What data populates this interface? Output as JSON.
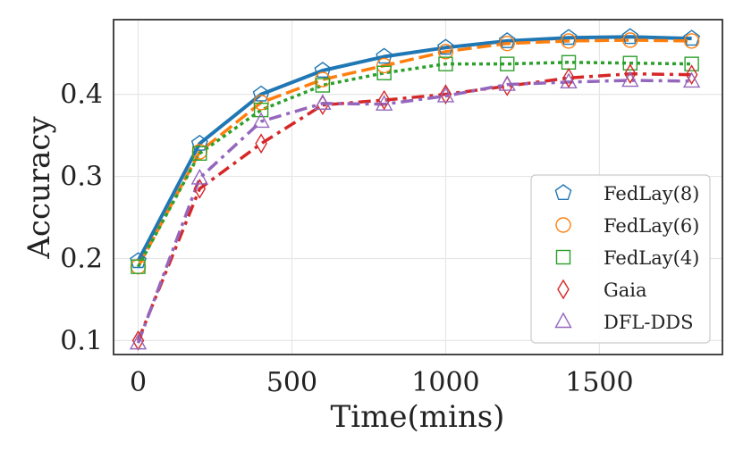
{
  "chart_data": {
    "type": "line",
    "title": "",
    "xlabel": "Time(mins)",
    "ylabel": "Accuracy",
    "xlim": [
      -80,
      1900
    ],
    "ylim": [
      0.083,
      0.491
    ],
    "xticks": [
      0,
      500,
      1000,
      1500
    ],
    "xtick_labels": [
      "0",
      "500",
      "1000",
      "1500"
    ],
    "yticks": [
      0.1,
      0.2,
      0.3,
      0.4
    ],
    "ytick_labels": [
      "0.1",
      "0.2",
      "0.3",
      "0.4"
    ],
    "grid": true,
    "legend_position": "lower-right",
    "x": [
      0,
      200,
      400,
      600,
      800,
      1000,
      1200,
      1400,
      1600,
      1800
    ],
    "series": [
      {
        "name": "FedLay(8)",
        "color": "#1f77b4",
        "line_style": "solid",
        "marker": "pentagon",
        "values": [
          0.197,
          0.34,
          0.4,
          0.429,
          0.446,
          0.457,
          0.465,
          0.469,
          0.47,
          0.468
        ]
      },
      {
        "name": "FedLay(6)",
        "color": "#ff7f0e",
        "line_style": "dashed",
        "marker": "circle",
        "values": [
          0.19,
          0.33,
          0.39,
          0.418,
          0.435,
          0.452,
          0.462,
          0.465,
          0.466,
          0.465
        ]
      },
      {
        "name": "FedLay(4)",
        "color": "#2ca02c",
        "line_style": "dotted",
        "marker": "square",
        "values": [
          0.19,
          0.328,
          0.381,
          0.411,
          0.426,
          0.437,
          0.437,
          0.439,
          0.438,
          0.437
        ]
      },
      {
        "name": "Gaia",
        "color": "#d62728",
        "line_style": "dashdot",
        "marker": "thin-diamond",
        "values": [
          0.1,
          0.285,
          0.34,
          0.387,
          0.393,
          0.4,
          0.41,
          0.42,
          0.425,
          0.424
        ]
      },
      {
        "name": "DFL-DDS",
        "color": "#9467bd",
        "line_style": "dashdot",
        "marker": "triangle",
        "values": [
          0.097,
          0.298,
          0.367,
          0.389,
          0.388,
          0.398,
          0.412,
          0.415,
          0.417,
          0.416
        ]
      }
    ]
  }
}
